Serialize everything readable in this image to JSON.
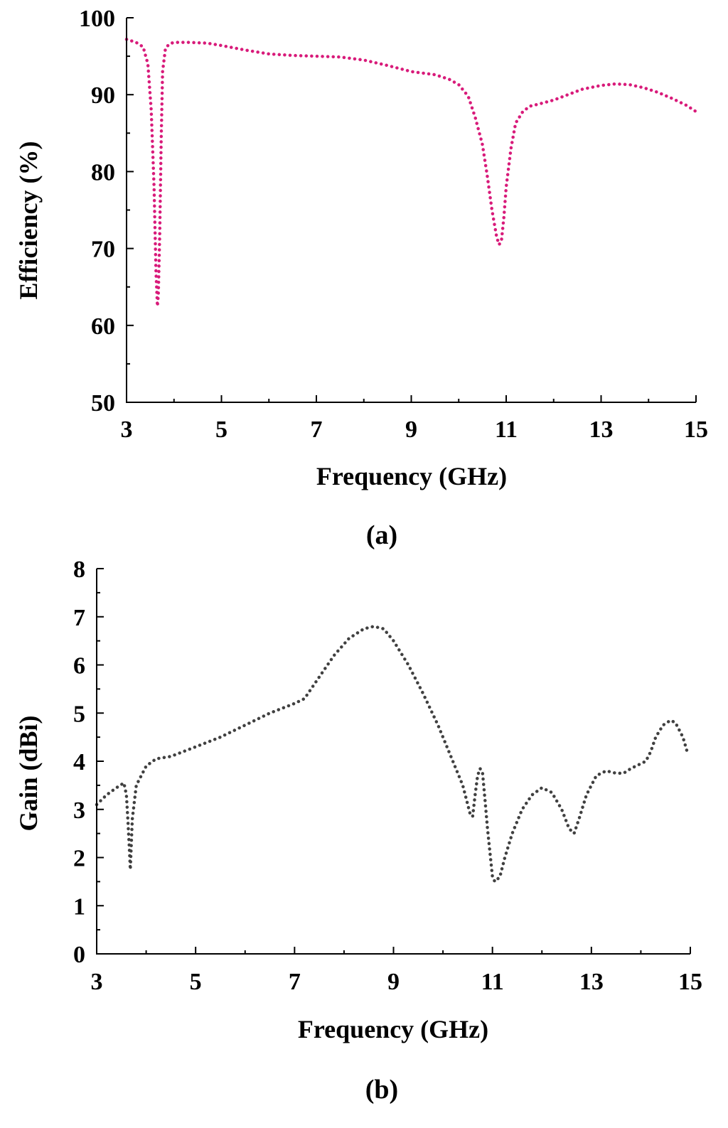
{
  "chart_data": [
    {
      "type": "line",
      "panel_label": "(a)",
      "xlabel": "Frequency (GHz)",
      "ylabel": "Efficiency (%)",
      "xlim": [
        3,
        15
      ],
      "ylim": [
        50,
        100
      ],
      "xticks": [
        "3",
        "5",
        "7",
        "9",
        "11",
        "13",
        "15"
      ],
      "yticks": [
        "50",
        "60",
        "70",
        "80",
        "90",
        "100"
      ],
      "grid": false,
      "line_style": "dotted",
      "series": [
        {
          "color": "#d81b7a",
          "x": [
            3.0,
            3.2,
            3.35,
            3.45,
            3.52,
            3.58,
            3.62,
            3.65,
            3.67,
            3.7,
            3.73,
            3.76,
            3.82,
            3.9,
            4.0,
            4.3,
            4.7,
            5.0,
            5.5,
            6.0,
            6.5,
            7.0,
            7.5,
            8.0,
            8.5,
            9.0,
            9.5,
            9.8,
            10.0,
            10.2,
            10.35,
            10.5,
            10.6,
            10.7,
            10.8,
            10.85,
            10.9,
            10.95,
            11.0,
            11.1,
            11.2,
            11.35,
            11.5,
            11.7,
            12.0,
            12.3,
            12.6,
            13.0,
            13.3,
            13.6,
            13.9,
            14.2,
            14.5,
            14.8,
            15.0
          ],
          "y": [
            97.2,
            96.8,
            96.2,
            94.0,
            88.0,
            78.0,
            67.0,
            62.5,
            64.0,
            72.0,
            84.0,
            93.0,
            96.0,
            96.6,
            96.8,
            96.8,
            96.7,
            96.4,
            95.8,
            95.3,
            95.1,
            95.0,
            94.9,
            94.5,
            93.8,
            93.0,
            92.6,
            92.0,
            91.3,
            89.8,
            87.0,
            83.5,
            79.5,
            75.0,
            71.5,
            70.5,
            71.0,
            74.0,
            78.0,
            83.0,
            86.3,
            87.8,
            88.5,
            88.8,
            89.3,
            90.0,
            90.7,
            91.2,
            91.4,
            91.3,
            90.9,
            90.3,
            89.5,
            88.6,
            87.8
          ]
        }
      ]
    },
    {
      "type": "line",
      "panel_label": "(b)",
      "xlabel": "Frequency (GHz)",
      "ylabel": "Gain (dBi)",
      "xlim": [
        3,
        15
      ],
      "ylim": [
        0,
        8
      ],
      "xticks": [
        "3",
        "5",
        "7",
        "9",
        "11",
        "13",
        "15"
      ],
      "yticks": [
        "0",
        "1",
        "2",
        "3",
        "4",
        "5",
        "6",
        "7",
        "8"
      ],
      "grid": false,
      "line_style": "dotted",
      "series": [
        {
          "color": "#404040",
          "x": [
            3.0,
            3.2,
            3.4,
            3.55,
            3.6,
            3.63,
            3.66,
            3.68,
            3.72,
            3.8,
            4.0,
            4.2,
            4.5,
            5.0,
            5.5,
            6.0,
            6.5,
            7.0,
            7.2,
            7.5,
            7.8,
            8.1,
            8.4,
            8.6,
            8.8,
            9.0,
            9.3,
            9.6,
            9.9,
            10.2,
            10.4,
            10.55,
            10.6,
            10.65,
            10.7,
            10.75,
            10.8,
            10.85,
            10.9,
            11.0,
            11.05,
            11.15,
            11.25,
            11.4,
            11.6,
            11.8,
            12.0,
            12.2,
            12.4,
            12.55,
            12.65,
            12.75,
            12.9,
            13.1,
            13.3,
            13.5,
            13.65,
            13.8,
            14.0,
            14.1,
            14.2,
            14.3,
            14.45,
            14.6,
            14.7,
            14.85,
            14.95
          ],
          "y": [
            3.1,
            3.3,
            3.45,
            3.55,
            3.3,
            2.8,
            2.2,
            1.75,
            2.8,
            3.5,
            3.9,
            4.05,
            4.1,
            4.3,
            4.5,
            4.75,
            5.0,
            5.2,
            5.3,
            5.75,
            6.2,
            6.55,
            6.75,
            6.8,
            6.75,
            6.5,
            6.0,
            5.4,
            4.75,
            4.0,
            3.5,
            2.9,
            2.85,
            3.3,
            3.7,
            3.85,
            3.75,
            3.2,
            2.6,
            1.6,
            1.5,
            1.6,
            2.0,
            2.5,
            3.0,
            3.3,
            3.45,
            3.35,
            3.0,
            2.6,
            2.5,
            2.8,
            3.3,
            3.7,
            3.8,
            3.75,
            3.75,
            3.85,
            3.95,
            4.0,
            4.2,
            4.5,
            4.75,
            4.85,
            4.8,
            4.5,
            4.15
          ]
        }
      ]
    }
  ]
}
